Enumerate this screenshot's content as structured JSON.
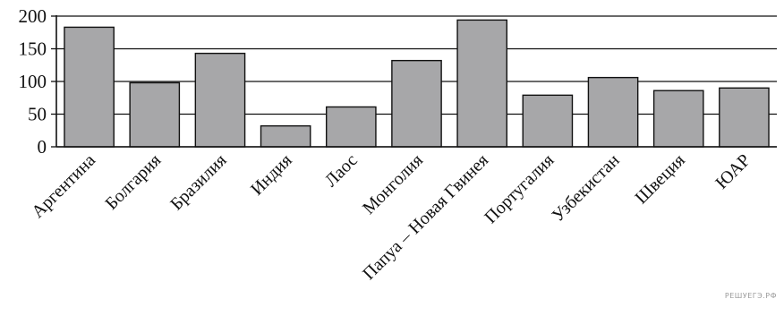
{
  "chart_data": {
    "type": "bar",
    "categories": [
      "Аргентина",
      "Болгария",
      "Бразилия",
      "Индия",
      "Лаос",
      "Монголия",
      "Папуа – Новая Гвинея",
      "Португалия",
      "Узбекистан",
      "Швеция",
      "ЮАР"
    ],
    "values": [
      183,
      98,
      143,
      32,
      61,
      132,
      194,
      79,
      106,
      86,
      90
    ],
    "title": "",
    "xlabel": "",
    "ylabel": "",
    "ylim": [
      0,
      200
    ],
    "yticks": [
      0,
      50,
      100,
      150,
      200
    ],
    "grid": true,
    "bar_color": "#a7a7a9",
    "edge_color": "#111111"
  },
  "watermark": "РЕШУЕГЭ.РФ"
}
